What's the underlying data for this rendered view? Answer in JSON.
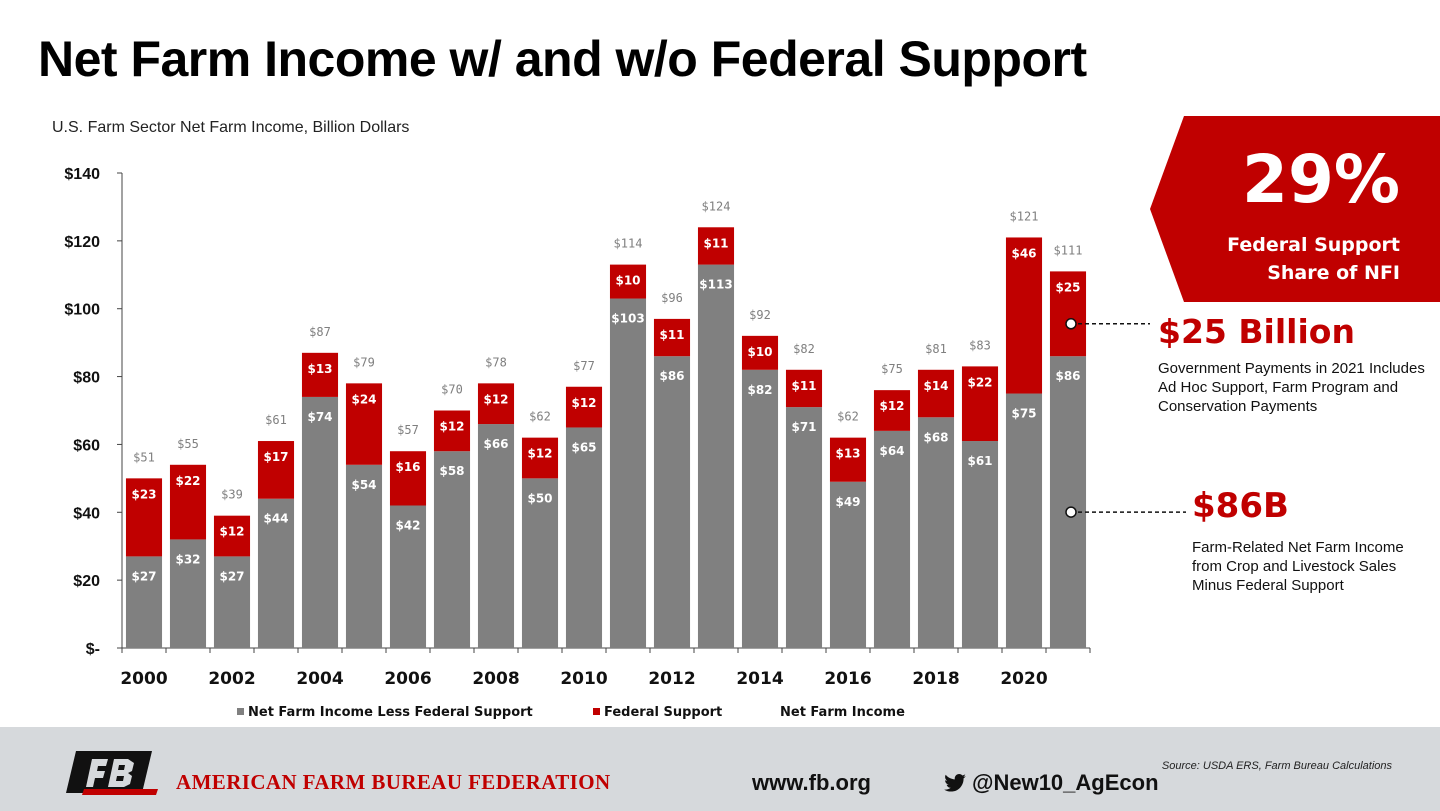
{
  "title": "Net Farm Income w/ and w/o Federal Support",
  "subtitle": "U.S. Farm Sector Net Farm Income, Billion Dollars",
  "chart_data": {
    "type": "bar",
    "stacked": true,
    "title": "Net Farm Income w/ and w/o Federal Support",
    "ylabel": "U.S. Farm Sector Net Farm Income, Billion Dollars",
    "ylim": [
      0,
      140
    ],
    "y_tick_labels": [
      "$-",
      "$20",
      "$40",
      "$60",
      "$80",
      "$100",
      "$120",
      "$140"
    ],
    "y_ticks": [
      0,
      20,
      40,
      60,
      80,
      100,
      120,
      140
    ],
    "x_tick_labels": [
      "2000",
      "2002",
      "2004",
      "2006",
      "2008",
      "2010",
      "2012",
      "2014",
      "2016",
      "2018",
      "2020"
    ],
    "categories": [
      "2000",
      "2001",
      "2002",
      "2003",
      "2004",
      "2005",
      "2006",
      "2007",
      "2008",
      "2009",
      "2010",
      "2011",
      "2012",
      "2013",
      "2014",
      "2015",
      "2016",
      "2017",
      "2018",
      "2019",
      "2020",
      "2021"
    ],
    "series": [
      {
        "name": "Net Farm Income Less Federal Support",
        "color": "#808080",
        "values": [
          27,
          32,
          27,
          44,
          74,
          54,
          42,
          58,
          66,
          50,
          65,
          103,
          86,
          113,
          82,
          71,
          49,
          64,
          68,
          61,
          75,
          86
        ],
        "labels": [
          "$27",
          "$32",
          "$27",
          "$44",
          "$74",
          "$54",
          "$42",
          "$58",
          "$66",
          "$50",
          "$65",
          "$103",
          "$86",
          "$113",
          "$82",
          "$71",
          "$49",
          "$64",
          "$68",
          "$61",
          "$75",
          "$86"
        ]
      },
      {
        "name": "Federal Support",
        "color": "#c00000",
        "values": [
          23,
          22,
          12,
          17,
          13,
          24,
          16,
          12,
          12,
          12,
          12,
          10,
          11,
          11,
          10,
          11,
          13,
          12,
          14,
          22,
          46,
          25
        ],
        "labels": [
          "$23",
          "$22",
          "$12",
          "$17",
          "$13",
          "$24",
          "$16",
          "$12",
          "$12",
          "$12",
          "$12",
          "$10",
          "$11",
          "$11",
          "$10",
          "$11",
          "$13",
          "$12",
          "$14",
          "$22",
          "$46",
          "$25"
        ]
      }
    ],
    "totals_name": "Net Farm Income",
    "totals": [
      51,
      55,
      39,
      61,
      87,
      79,
      57,
      70,
      78,
      62,
      77,
      114,
      96,
      124,
      92,
      82,
      62,
      75,
      81,
      83,
      121,
      111
    ],
    "total_labels": [
      "$51",
      "$55",
      "$39",
      "$61",
      "$87",
      "$79",
      "$57",
      "$70",
      "$78",
      "$62",
      "$77",
      "$114",
      "$96",
      "$124",
      "$92",
      "$82",
      "$62",
      "$75",
      "$81",
      "$83",
      "$121",
      "$111"
    ],
    "legend_placement": "bottom",
    "grid": false
  },
  "badge": {
    "percent": "29%",
    "line1": "Federal Support",
    "line2": "Share of NFI",
    "color": "#c00000"
  },
  "annotations": [
    {
      "value": "$25 Billion",
      "text": "Government Payments in 2021 Includes Ad Hoc Support, Farm Program and Conservation Payments"
    },
    {
      "value": "$86B",
      "text": "Farm-Related Net Farm Income from Crop and Livestock Sales Minus Federal Support"
    }
  ],
  "footer": {
    "org": "AMERICAN FARM BUREAU FEDERATION",
    "website": "www.fb.org",
    "twitter": "@New10_AgEcon",
    "source": "Source: USDA ERS, Farm Bureau Calculations",
    "logo_text": "FB"
  }
}
